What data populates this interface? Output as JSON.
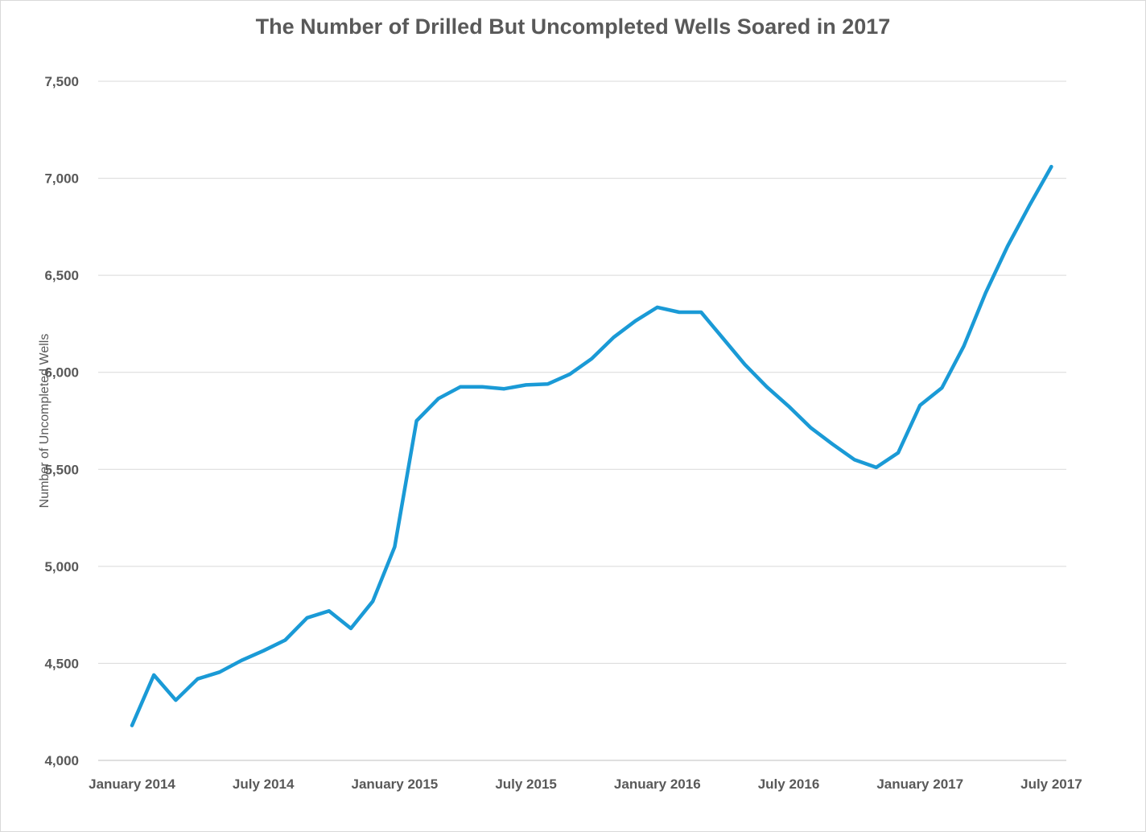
{
  "chart_data": {
    "type": "line",
    "title": "The Number of Drilled But Uncompleted Wells Soared in 2017",
    "xlabel": "",
    "ylabel": "Number of Uncompleted Wells",
    "ylim": [
      4000,
      7500
    ],
    "yticks": [
      4000,
      4500,
      5000,
      5500,
      6000,
      6500,
      7000,
      7500
    ],
    "ytick_labels": [
      "4,000",
      "4,500",
      "5,000",
      "5,500",
      "6,000",
      "6,500",
      "7,000",
      "7,500"
    ],
    "xtick_labels": [
      {
        "label": "January 2014",
        "index": 0
      },
      {
        "label": "July 2014",
        "index": 6
      },
      {
        "label": "January 2015",
        "index": 12
      },
      {
        "label": "July 2015",
        "index": 18
      },
      {
        "label": "January 2016",
        "index": 24
      },
      {
        "label": "July 2016",
        "index": 30
      },
      {
        "label": "January 2017",
        "index": 36
      },
      {
        "label": "July 2017",
        "index": 42
      }
    ],
    "grid": true,
    "series": [
      {
        "color": "#1a9ad6",
        "values": [
          4180,
          4440,
          4310,
          4420,
          4455,
          4515,
          4565,
          4620,
          4735,
          4770,
          4680,
          4820,
          5100,
          5750,
          5865,
          5925,
          5925,
          5915,
          5935,
          5940,
          5990,
          6070,
          6180,
          6265,
          6335,
          6310,
          6310,
          6175,
          6040,
          5925,
          5825,
          5715,
          5630,
          5550,
          5510,
          5585,
          5830,
          5920,
          6135,
          6410,
          6650,
          6860,
          7060
        ]
      }
    ]
  }
}
